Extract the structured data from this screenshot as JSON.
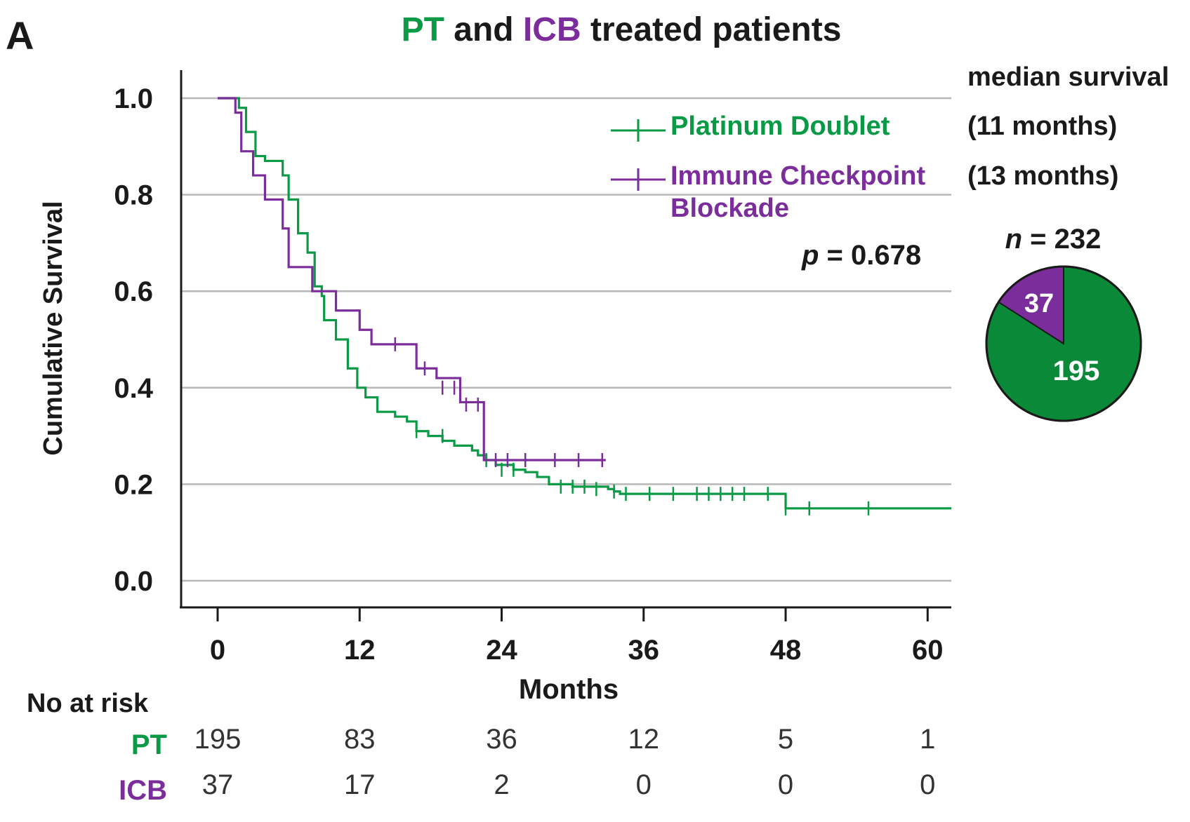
{
  "panel_label": "A",
  "title": {
    "part1": "PT",
    "part2": " and ",
    "part3": "ICB",
    "part4": " treated patients"
  },
  "colors": {
    "pt": "#0a9a45",
    "icb": "#7b2d9c",
    "grid": "#b8b8b8",
    "axis": "#1a1a1a",
    "pie_pt": "#0a8a38",
    "pie_icb": "#7b2d9c"
  },
  "chart_data": {
    "type": "line",
    "subtype": "kaplan-meier step",
    "ylabel": "Cumulative Survival",
    "xlabel": "Months",
    "xlim": [
      0,
      62
    ],
    "ylim": [
      0,
      1.0
    ],
    "xticks": [
      0,
      12,
      24,
      36,
      48,
      60
    ],
    "yticks": [
      0.0,
      0.2,
      0.4,
      0.6,
      0.8,
      1.0
    ],
    "ytick_labels": [
      "0.0",
      "0.2",
      "0.4",
      "0.6",
      "0.8",
      "1.0"
    ],
    "grid": "horizontal",
    "legend_position": "top-right",
    "series": [
      {
        "name": "Platinum Doublet",
        "median_label": "(11 months)",
        "key": "pt",
        "steps": [
          [
            0,
            1.0
          ],
          [
            1.8,
            0.98
          ],
          [
            2.4,
            0.93
          ],
          [
            3.2,
            0.88
          ],
          [
            4.0,
            0.87
          ],
          [
            5.5,
            0.84
          ],
          [
            6.0,
            0.79
          ],
          [
            6.8,
            0.72
          ],
          [
            7.6,
            0.68
          ],
          [
            8.2,
            0.61
          ],
          [
            8.8,
            0.59
          ],
          [
            9.0,
            0.54
          ],
          [
            10.0,
            0.5
          ],
          [
            11.0,
            0.44
          ],
          [
            11.8,
            0.4
          ],
          [
            12.5,
            0.38
          ],
          [
            13.5,
            0.35
          ],
          [
            15.0,
            0.34
          ],
          [
            16.0,
            0.33
          ],
          [
            16.8,
            0.31
          ],
          [
            17.8,
            0.3
          ],
          [
            19.0,
            0.29
          ],
          [
            20.0,
            0.28
          ],
          [
            21.5,
            0.27
          ],
          [
            22.0,
            0.26
          ],
          [
            22.7,
            0.25
          ],
          [
            23.5,
            0.24
          ],
          [
            25.0,
            0.23
          ],
          [
            26.0,
            0.225
          ],
          [
            27.0,
            0.215
          ],
          [
            28.0,
            0.2
          ],
          [
            30.0,
            0.195
          ],
          [
            33.0,
            0.19
          ],
          [
            33.5,
            0.185
          ],
          [
            34.0,
            0.18
          ],
          [
            48.0,
            0.15
          ],
          [
            62.0,
            0.15
          ]
        ],
        "censors": [
          [
            16.8,
            0.31
          ],
          [
            19.0,
            0.3
          ],
          [
            22.7,
            0.25
          ],
          [
            24.0,
            0.23
          ],
          [
            25.0,
            0.23
          ],
          [
            29.0,
            0.195
          ],
          [
            30.0,
            0.195
          ],
          [
            31.0,
            0.195
          ],
          [
            32.0,
            0.19
          ],
          [
            33.5,
            0.185
          ],
          [
            34.5,
            0.18
          ],
          [
            36.5,
            0.18
          ],
          [
            38.5,
            0.18
          ],
          [
            40.5,
            0.18
          ],
          [
            41.5,
            0.18
          ],
          [
            42.5,
            0.18
          ],
          [
            43.5,
            0.18
          ],
          [
            44.5,
            0.18
          ],
          [
            46.5,
            0.18
          ],
          [
            48.0,
            0.15
          ],
          [
            50.0,
            0.15
          ],
          [
            55.0,
            0.15
          ]
        ]
      },
      {
        "name": "Immune Checkpoint Blockade",
        "name_line1": "Immune Checkpoint",
        "name_line2": "Blockade",
        "median_label": "(13 months)",
        "key": "icb",
        "steps": [
          [
            0,
            1.0
          ],
          [
            1.5,
            0.97
          ],
          [
            2.0,
            0.89
          ],
          [
            3.0,
            0.84
          ],
          [
            4.0,
            0.79
          ],
          [
            5.5,
            0.73
          ],
          [
            6.0,
            0.65
          ],
          [
            8.0,
            0.6
          ],
          [
            10.0,
            0.56
          ],
          [
            12.0,
            0.52
          ],
          [
            13.0,
            0.49
          ],
          [
            16.8,
            0.44
          ],
          [
            18.5,
            0.42
          ],
          [
            20.5,
            0.37
          ],
          [
            22.5,
            0.25
          ],
          [
            32.8,
            0.25
          ]
        ],
        "censors": [
          [
            15.0,
            0.49
          ],
          [
            17.5,
            0.44
          ],
          [
            19.0,
            0.4
          ],
          [
            20.0,
            0.4
          ],
          [
            21.0,
            0.365
          ],
          [
            22.0,
            0.365
          ],
          [
            23.5,
            0.25
          ],
          [
            24.5,
            0.25
          ],
          [
            26.0,
            0.25
          ],
          [
            28.5,
            0.25
          ],
          [
            30.5,
            0.25
          ],
          [
            32.5,
            0.25
          ]
        ]
      }
    ]
  },
  "median_header": "median survival",
  "p_value": {
    "label": "p",
    "text": " = 0.678"
  },
  "pie": {
    "n_label": "n",
    "n_text": " = 232",
    "slices": [
      {
        "label": "PT",
        "value": 195,
        "key": "pie_pt"
      },
      {
        "label": "ICB",
        "value": 37,
        "key": "pie_icb"
      }
    ]
  },
  "risk_table": {
    "header": "No at risk",
    "rows": [
      {
        "label": "PT",
        "key": "pt",
        "values": [
          "195",
          "83",
          "36",
          "12",
          "5",
          "1"
        ]
      },
      {
        "label": "ICB",
        "key": "icb",
        "values": [
          "37",
          "17",
          "2",
          "0",
          "0",
          "0"
        ]
      }
    ]
  }
}
